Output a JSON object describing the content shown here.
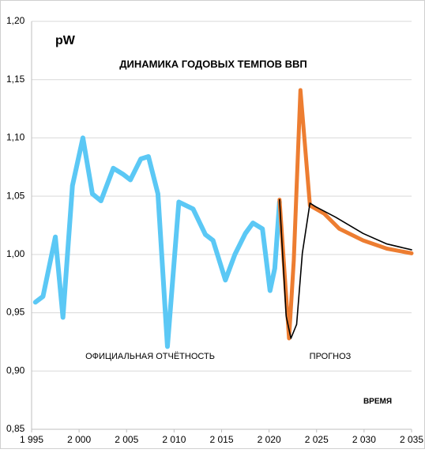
{
  "chart_data": {
    "type": "line",
    "title": "ДИНАМИКА  ГОДОВЫХ  ТЕМПОВ  ВВП",
    "ylabel": "pW",
    "xlabel": "ВРЕМЯ",
    "annotations": [
      "ОФИЦИАЛЬНАЯ ОТЧЁТНОСТЬ",
      "ПРОГНОЗ"
    ],
    "xlim": [
      1995,
      2035
    ],
    "xticks": [
      {
        "value": 1995,
        "label": "1 995"
      },
      {
        "value": 2000,
        "label": "2 000"
      },
      {
        "value": 2005,
        "label": "2 005"
      },
      {
        "value": 2010,
        "label": "2 010"
      },
      {
        "value": 2015,
        "label": "2 015"
      },
      {
        "value": 2020,
        "label": "2 020"
      },
      {
        "value": 2025,
        "label": "2 025"
      },
      {
        "value": 2030,
        "label": "2 030"
      },
      {
        "value": 2035,
        "label": "2 035"
      }
    ],
    "ylim": [
      0.85,
      1.2
    ],
    "yticks": [
      {
        "value": 0.85,
        "label": "0,85"
      },
      {
        "value": 0.9,
        "label": "0,90"
      },
      {
        "value": 0.95,
        "label": "0,95"
      },
      {
        "value": 1.0,
        "label": "1,00"
      },
      {
        "value": 1.05,
        "label": "1,05"
      },
      {
        "value": 1.1,
        "label": "1,10"
      },
      {
        "value": 1.15,
        "label": "1,15"
      },
      {
        "value": 1.2,
        "label": "1,20"
      }
    ],
    "grid": true,
    "series": [
      {
        "color": "#5bc8f5",
        "width": 6,
        "x": [
          1995.4,
          1996.2,
          1997.5,
          1998.3,
          1999.3,
          2000.4,
          2001.4,
          2002.3,
          2003.6,
          2004.6,
          2005.4,
          2006.5,
          2007.3,
          2008.3,
          2009.3,
          2010.5,
          2012.0,
          2013.3,
          2014.1,
          2015.4,
          2016.4,
          2017.5,
          2018.3,
          2019.3,
          2020.1,
          2020.6,
          2021.1
        ],
        "values": [
          0.959,
          0.964,
          1.015,
          0.946,
          1.059,
          1.1,
          1.052,
          1.046,
          1.074,
          1.069,
          1.064,
          1.082,
          1.084,
          1.052,
          0.921,
          1.045,
          1.039,
          1.017,
          1.012,
          0.978,
          1.0,
          1.018,
          1.027,
          1.022,
          0.969,
          0.988,
          1.045
        ]
      },
      {
        "color": "#ed7d31",
        "width": 5,
        "x": [
          2021.1,
          2022.1,
          2022.6,
          2023.3,
          2024.3,
          2025.8,
          2027.4,
          2029.9,
          2032.4,
          2035.0
        ],
        "values": [
          1.047,
          0.928,
          0.995,
          1.141,
          1.042,
          1.035,
          1.022,
          1.012,
          1.005,
          1.001
        ]
      },
      {
        "color": "#000000",
        "width": 1.6,
        "x": [
          2021.1,
          2021.8,
          2022.3,
          2022.9,
          2023.5,
          2024.3,
          2024.9,
          2027.0,
          2029.9,
          2032.4,
          2035.0
        ],
        "values": [
          1.047,
          0.947,
          0.928,
          0.94,
          1.001,
          1.044,
          1.041,
          1.032,
          1.018,
          1.009,
          1.004
        ]
      }
    ]
  }
}
